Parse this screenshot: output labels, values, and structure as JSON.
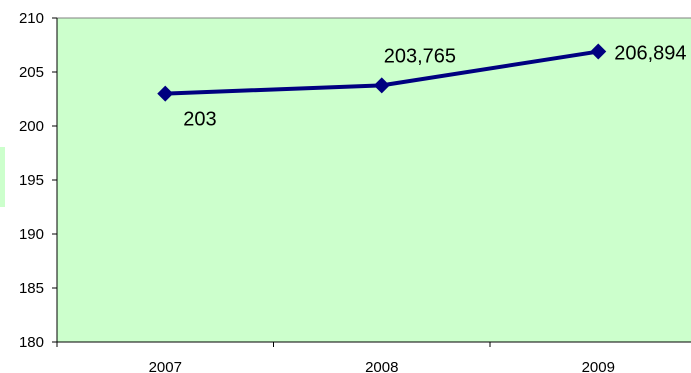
{
  "chart_data": {
    "type": "line",
    "categories": [
      "2007",
      "2008",
      "2009"
    ],
    "series": [
      {
        "values": [
          203,
          203.765,
          206.894
        ]
      }
    ],
    "data_labels": [
      "203",
      "203,765",
      "206,894"
    ],
    "ylim": [
      180,
      210
    ],
    "yticks": [
      "180",
      "185",
      "190",
      "195",
      "200",
      "205",
      "210"
    ],
    "grid": false,
    "legend": "none",
    "plot_background": "#ccffcc",
    "line_color": "#000080",
    "marker": "diamond"
  }
}
